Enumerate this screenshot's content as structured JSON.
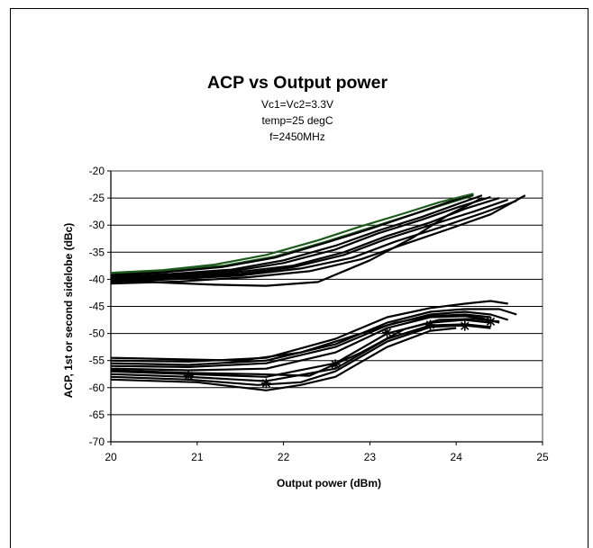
{
  "chart_data": {
    "type": "line",
    "title": "ACP vs Output power",
    "subtitle_lines": [
      "Vc1=Vc2=3.3V",
      "temp=25 degC",
      "f=2450MHz"
    ],
    "xlabel": "Output power (dBm)",
    "ylabel": "ACP, 1st or second sidelobe (dBc)",
    "xlim": [
      20,
      25
    ],
    "ylim": [
      -70,
      -20
    ],
    "x_ticks": [
      "20",
      "21",
      "22",
      "23",
      "24",
      "25"
    ],
    "y_ticks": [
      "-20",
      "-25",
      "-30",
      "-35",
      "-40",
      "-45",
      "-50",
      "-55",
      "-60",
      "-65",
      "-70"
    ],
    "grid": "horizontal",
    "series": [
      {
        "group": "upper",
        "x": [
          20.0,
          20.6,
          21.3,
          21.9,
          22.5,
          23.0,
          23.5,
          23.9,
          24.2
        ],
        "y": [
          -39.0,
          -38.5,
          -37.5,
          -35.8,
          -33.0,
          -30.5,
          -28.0,
          -26.0,
          -24.5
        ]
      },
      {
        "group": "upper",
        "x": [
          20.0,
          20.6,
          21.3,
          21.9,
          22.5,
          23.0,
          23.5,
          23.9,
          24.2
        ],
        "y": [
          -39.2,
          -38.7,
          -37.7,
          -36.0,
          -33.2,
          -30.7,
          -28.0,
          -25.8,
          -24.3
        ]
      },
      {
        "group": "upper",
        "x": [
          20.0,
          20.7,
          21.4,
          22.0,
          22.6,
          23.1,
          23.6,
          24.0,
          24.3
        ],
        "y": [
          -39.5,
          -39.0,
          -38.2,
          -36.5,
          -33.8,
          -31.0,
          -28.5,
          -26.2,
          -24.5
        ]
      },
      {
        "group": "upper",
        "x": [
          20.0,
          20.7,
          21.4,
          22.0,
          22.6,
          23.1,
          23.6,
          24.0,
          24.4
        ],
        "y": [
          -39.8,
          -39.3,
          -38.5,
          -37.0,
          -34.5,
          -31.5,
          -29.0,
          -26.8,
          -24.8
        ]
      },
      {
        "group": "upper",
        "x": [
          20.0,
          20.7,
          21.4,
          22.1,
          22.7,
          23.2,
          23.7,
          24.1,
          24.5
        ],
        "y": [
          -40.0,
          -39.6,
          -38.8,
          -37.5,
          -35.0,
          -32.0,
          -29.5,
          -27.0,
          -25.0
        ]
      },
      {
        "group": "upper",
        "x": [
          20.0,
          20.7,
          21.5,
          22.1,
          22.7,
          23.2,
          23.7,
          24.2,
          24.6
        ],
        "y": [
          -40.3,
          -39.8,
          -39.0,
          -37.8,
          -35.5,
          -32.5,
          -30.0,
          -27.5,
          -25.3
        ]
      },
      {
        "group": "upper",
        "x": [
          20.0,
          20.7,
          21.5,
          22.2,
          22.8,
          23.3,
          23.8,
          24.3,
          24.7
        ],
        "y": [
          -40.5,
          -40.0,
          -39.3,
          -38.0,
          -36.0,
          -33.0,
          -30.5,
          -27.8,
          -25.5
        ]
      },
      {
        "group": "upper",
        "x": [
          20.0,
          20.6,
          21.2,
          21.8,
          22.4,
          22.9,
          23.4,
          23.8,
          24.2
        ],
        "y": [
          -38.8,
          -38.3,
          -37.3,
          -35.5,
          -32.8,
          -30.2,
          -27.8,
          -25.8,
          -24.2
        ]
      },
      {
        "group": "upper",
        "x": [
          20.0,
          20.8,
          21.6,
          22.3,
          22.9,
          23.4,
          23.9,
          24.4,
          24.8
        ],
        "y": [
          -40.8,
          -40.4,
          -39.6,
          -38.5,
          -36.3,
          -33.5,
          -30.8,
          -28.0,
          -24.5
        ]
      },
      {
        "group": "upper",
        "x": [
          20.0,
          20.6,
          21.2,
          21.8,
          22.4,
          23.0,
          23.5,
          23.9,
          24.3
        ],
        "y": [
          -40.2,
          -40.6,
          -41.0,
          -41.2,
          -40.5,
          -36.5,
          -32.3,
          -28.2,
          -25.0
        ]
      },
      {
        "group": "lower",
        "x": [
          20.0,
          20.9,
          21.8,
          22.6,
          23.2,
          23.7,
          24.1,
          24.4,
          24.6
        ],
        "y": [
          -55.0,
          -55.2,
          -54.5,
          -51.0,
          -47.0,
          -45.3,
          -44.5,
          -44.0,
          -44.5
        ]
      },
      {
        "group": "lower",
        "x": [
          20.0,
          20.9,
          21.8,
          22.6,
          23.2,
          23.7,
          24.1,
          24.5,
          24.7
        ],
        "y": [
          -55.5,
          -55.8,
          -55.0,
          -52.0,
          -48.0,
          -46.0,
          -45.5,
          -45.5,
          -46.5
        ]
      },
      {
        "group": "lower",
        "x": [
          20.0,
          20.9,
          21.8,
          22.6,
          23.2,
          23.7,
          24.1,
          24.4,
          24.6
        ],
        "y": [
          -56.0,
          -56.2,
          -55.5,
          -52.5,
          -48.5,
          -46.5,
          -46.0,
          -46.5,
          -47.5
        ]
      },
      {
        "group": "lower",
        "x": [
          20.0,
          20.9,
          21.8,
          22.6,
          23.2,
          23.7,
          24.1,
          24.3,
          24.5
        ],
        "y": [
          -56.5,
          -56.8,
          -56.5,
          -53.5,
          -49.0,
          -47.0,
          -46.8,
          -47.2,
          -48.0
        ]
      },
      {
        "group": "lower",
        "x": [
          20.0,
          20.9,
          21.8,
          22.6,
          23.2,
          23.7,
          24.1,
          24.4
        ],
        "y": [
          -57.0,
          -57.5,
          -58.0,
          -55.5,
          -50.0,
          -48.0,
          -47.5,
          -48.0
        ]
      },
      {
        "group": "lower",
        "x": [
          20.0,
          20.9,
          21.8,
          22.6,
          23.2,
          23.7,
          24.1,
          24.4
        ],
        "y": [
          -57.5,
          -58.0,
          -58.8,
          -56.5,
          -51.0,
          -48.5,
          -48.3,
          -48.8
        ]
      },
      {
        "group": "lower",
        "x": [
          20.0,
          20.9,
          21.7,
          22.2,
          22.6,
          23.2,
          23.7,
          24.1,
          24.4
        ],
        "y": [
          -58.0,
          -58.5,
          -59.5,
          -59.0,
          -57.0,
          -51.5,
          -48.8,
          -48.5,
          -49.0
        ]
      },
      {
        "group": "lower",
        "x": [
          20.0,
          21.0,
          21.8,
          22.2,
          22.6,
          23.2,
          23.7,
          24.0
        ],
        "y": [
          -58.5,
          -59.0,
          -60.5,
          -59.5,
          -58.0,
          -52.5,
          -49.5,
          -49.0
        ]
      },
      {
        "group": "lower",
        "x": [
          20.0,
          20.9,
          21.5,
          22.2,
          22.8,
          23.3,
          23.7,
          24.1,
          24.4
        ],
        "y": [
          -54.5,
          -54.8,
          -55.0,
          -53.5,
          -50.5,
          -48.0,
          -46.8,
          -46.5,
          -47.0
        ]
      },
      {
        "group": "lower",
        "x": [
          20.0,
          20.9,
          21.7,
          22.3,
          22.9,
          23.4,
          23.8,
          24.2,
          24.5
        ],
        "y": [
          -56.8,
          -57.3,
          -57.5,
          -57.8,
          -53.5,
          -49.2,
          -47.5,
          -47.3,
          -47.8
        ]
      }
    ],
    "markers": {
      "symbol": "asterisk",
      "points": [
        [
          20.9,
          -57.8
        ],
        [
          21.8,
          -59.2
        ],
        [
          22.6,
          -55.7
        ],
        [
          23.2,
          -49.8
        ],
        [
          23.7,
          -48.4
        ],
        [
          24.1,
          -48.6
        ],
        [
          24.4,
          -47.8
        ]
      ]
    },
    "colors": {
      "line": "#000000",
      "accent_line": "#1e5a1e",
      "plot_background": "#ffffff",
      "grid": "#000000"
    }
  }
}
